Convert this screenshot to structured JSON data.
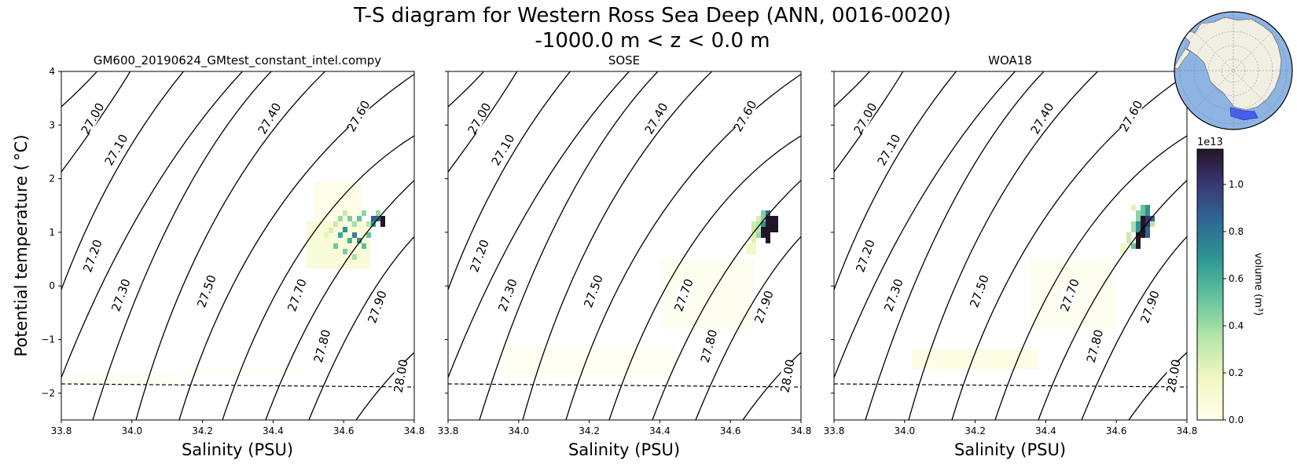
{
  "figure": {
    "title_line1": "T-S diagram for Western Ross Sea Deep (ANN, 0016-0020)",
    "title_line2": "-1000.0 m < z < 0.0 m"
  },
  "chart_data": [
    {
      "type": "heatmap",
      "title": "GM600_20190624_GMtest_constant_intel.compy",
      "xlabel": "Salinity (PSU)",
      "ylabel": "Potential temperature ( °C)",
      "xlim": [
        33.8,
        34.8
      ],
      "ylim": [
        -2.5,
        4
      ],
      "xticks": [
        "33.8",
        "34.0",
        "34.2",
        "34.4",
        "34.6",
        "34.8"
      ],
      "yticks": [
        "−2",
        "−1",
        "0",
        "1",
        "2",
        "3",
        "4"
      ],
      "freezing_line": {
        "s": [
          33.8,
          34.8
        ],
        "t": [
          -1.84,
          -1.9
        ]
      },
      "density_contours": [
        "27.00",
        "27.10",
        "27.20",
        "27.30",
        "27.40",
        "27.50",
        "27.60",
        "27.70",
        "27.80",
        "27.90",
        "28.00"
      ],
      "volume_cells": [
        {
          "s": 34.56,
          "t": 1.1,
          "v": 0.35
        },
        {
          "s": 34.58,
          "t": 0.9,
          "v": 0.45
        },
        {
          "s": 34.6,
          "t": 0.75,
          "v": 0.55
        },
        {
          "s": 34.62,
          "t": 0.65,
          "v": 0.6
        },
        {
          "s": 34.64,
          "t": 0.95,
          "v": 0.55
        },
        {
          "s": 34.66,
          "t": 0.8,
          "v": 0.5
        },
        {
          "s": 34.68,
          "t": 1.1,
          "v": 0.45
        },
        {
          "s": 34.7,
          "t": 1.25,
          "v": 0.6
        },
        {
          "s": 34.72,
          "t": 1.15,
          "v": 1.0
        }
      ]
    },
    {
      "type": "heatmap",
      "title": "SOSE",
      "xlabel": "Salinity (PSU)",
      "ylabel": "",
      "xlim": [
        33.8,
        34.8
      ],
      "ylim": [
        -2.5,
        4
      ],
      "xticks": [
        "33.8",
        "34.0",
        "34.2",
        "34.4",
        "34.6",
        "34.8"
      ],
      "freezing_line": {
        "s": [
          33.8,
          34.8
        ],
        "t": [
          -1.84,
          -1.9
        ]
      },
      "density_contours": [
        "27.00",
        "27.10",
        "27.20",
        "27.30",
        "27.40",
        "27.50",
        "27.60",
        "27.70",
        "27.80",
        "27.90",
        "28.00"
      ],
      "volume_cells": [
        {
          "s": 34.66,
          "t": 0.7,
          "v": 0.2
        },
        {
          "s": 34.68,
          "t": 0.9,
          "v": 0.35
        },
        {
          "s": 34.7,
          "t": 1.1,
          "v": 0.9
        },
        {
          "s": 34.72,
          "t": 1.15,
          "v": 1.15
        },
        {
          "s": 34.7,
          "t": 0.9,
          "v": 1.15
        }
      ]
    },
    {
      "type": "heatmap",
      "title": "WOA18",
      "xlabel": "Salinity (PSU)",
      "ylabel": "",
      "xlim": [
        33.8,
        34.8
      ],
      "ylim": [
        -2.5,
        4
      ],
      "xticks": [
        "33.8",
        "34.0",
        "34.2",
        "34.4",
        "34.6",
        "34.8"
      ],
      "freezing_line": {
        "s": [
          33.8,
          34.8
        ],
        "t": [
          -1.84,
          -1.9
        ]
      },
      "density_contours": [
        "27.00",
        "27.10",
        "27.20",
        "27.30",
        "27.40",
        "27.50",
        "27.60",
        "27.70",
        "27.80",
        "27.90",
        "28.00"
      ],
      "volume_cells": [
        {
          "s": 34.64,
          "t": 0.9,
          "v": 0.3
        },
        {
          "s": 34.66,
          "t": 1.1,
          "v": 0.4
        },
        {
          "s": 34.68,
          "t": 0.95,
          "v": 0.9
        },
        {
          "s": 34.7,
          "t": 1.15,
          "v": 1.1
        },
        {
          "s": 34.72,
          "t": 1.2,
          "v": 0.7
        }
      ]
    }
  ],
  "colorbar": {
    "label": "volume (m³)",
    "exponent": "1e13",
    "range": [
      0,
      1.15
    ],
    "ticks": [
      "0.0",
      "0.2",
      "0.4",
      "0.6",
      "0.8",
      "1.0"
    ]
  },
  "colors": {
    "contour": "#000000",
    "map_ocean": "#8eb4e3",
    "map_land": "#f1efe3",
    "map_region": "#3a4ef0"
  }
}
